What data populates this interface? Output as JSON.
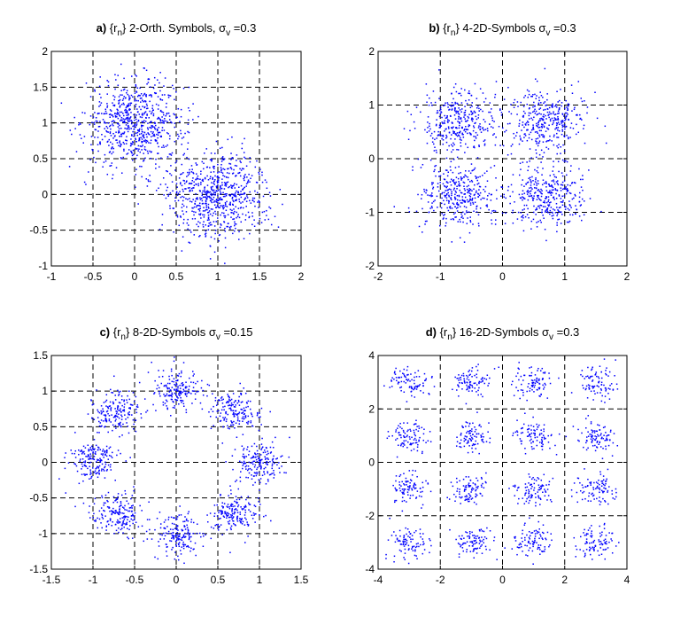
{
  "figure": {
    "panels_count": 4
  },
  "chart_data": [
    {
      "type": "scatter",
      "panel_letter": "a)",
      "title_text": "{r",
      "title_sub": "n",
      "title_rest": "}  2-Orth. Symbols,  σ",
      "title_sigma_sub": "v",
      "title_value": "=0.3",
      "xlim": [
        -1,
        2
      ],
      "ylim": [
        -1,
        2
      ],
      "xticks": [
        -1,
        -0.5,
        0,
        0.5,
        1,
        1.5,
        2
      ],
      "yticks": [
        -1,
        -0.5,
        0,
        0.5,
        1,
        1.5,
        2
      ],
      "xtick_labels": [
        "-1",
        "-0.5",
        "0",
        "0.5",
        "1",
        "1.5",
        "2"
      ],
      "ytick_labels": [
        "-1",
        "-0.5",
        "0",
        "0.5",
        "1",
        "1.5",
        "2"
      ],
      "grid": true,
      "color": "#0000ff",
      "clusters": [
        {
          "center": [
            0,
            1
          ],
          "sigma": 0.3,
          "count": 700
        },
        {
          "center": [
            1,
            0
          ],
          "sigma": 0.3,
          "count": 700
        }
      ]
    },
    {
      "type": "scatter",
      "panel_letter": "b)",
      "title_text": "{r",
      "title_sub": "n",
      "title_rest": "}  4-2D-Symbols σ",
      "title_sigma_sub": "v",
      "title_value": "=0.3",
      "xlim": [
        -2,
        2
      ],
      "ylim": [
        -2,
        2
      ],
      "xticks": [
        -2,
        -1,
        0,
        1,
        2
      ],
      "yticks": [
        -2,
        -1,
        0,
        1,
        2
      ],
      "xtick_labels": [
        "-2",
        "-1",
        "0",
        "1",
        "2"
      ],
      "ytick_labels": [
        "-2",
        "-1",
        "0",
        "1",
        "2"
      ],
      "grid": true,
      "color": "#0000ff",
      "clusters": [
        {
          "center": [
            -0.707,
            0.707
          ],
          "sigma": 0.3,
          "count": 350
        },
        {
          "center": [
            0.707,
            0.707
          ],
          "sigma": 0.3,
          "count": 350
        },
        {
          "center": [
            -0.707,
            -0.707
          ],
          "sigma": 0.3,
          "count": 350
        },
        {
          "center": [
            0.707,
            -0.707
          ],
          "sigma": 0.3,
          "count": 350
        }
      ]
    },
    {
      "type": "scatter",
      "panel_letter": "c)",
      "title_text": "{r",
      "title_sub": "n",
      "title_rest": "} 8-2D-Symbols σ",
      "title_sigma_sub": "v",
      "title_value": "=0.15",
      "xlim": [
        -1.5,
        1.5
      ],
      "ylim": [
        -1.5,
        1.5
      ],
      "xticks": [
        -1.5,
        -1,
        -0.5,
        0,
        0.5,
        1,
        1.5
      ],
      "yticks": [
        -1.5,
        -1,
        -0.5,
        0,
        0.5,
        1,
        1.5
      ],
      "xtick_labels": [
        "-1.5",
        "-1",
        "-0.5",
        "0",
        "0.5",
        "1",
        "1.5"
      ],
      "ytick_labels": [
        "-1.5",
        "-1",
        "-0.5",
        "0",
        "0.5",
        "1",
        "1.5"
      ],
      "grid": true,
      "color": "#0000ff",
      "clusters": [
        {
          "center": [
            1,
            0
          ],
          "sigma": 0.15,
          "count": 175
        },
        {
          "center": [
            0.707,
            0.707
          ],
          "sigma": 0.15,
          "count": 175
        },
        {
          "center": [
            0,
            1
          ],
          "sigma": 0.15,
          "count": 175
        },
        {
          "center": [
            -0.707,
            0.707
          ],
          "sigma": 0.15,
          "count": 175
        },
        {
          "center": [
            -1,
            0
          ],
          "sigma": 0.15,
          "count": 175
        },
        {
          "center": [
            -0.707,
            -0.707
          ],
          "sigma": 0.15,
          "count": 175
        },
        {
          "center": [
            0,
            -1
          ],
          "sigma": 0.15,
          "count": 175
        },
        {
          "center": [
            0.707,
            -0.707
          ],
          "sigma": 0.15,
          "count": 175
        }
      ]
    },
    {
      "type": "scatter",
      "panel_letter": "d)",
      "title_text": "{r",
      "title_sub": "n",
      "title_rest": "}  16-2D-Symbols σ",
      "title_sigma_sub": "v",
      "title_value": "=0.3",
      "xlim": [
        -4,
        4
      ],
      "ylim": [
        -4,
        4
      ],
      "xticks": [
        -4,
        -2,
        0,
        2,
        4
      ],
      "yticks": [
        -4,
        -2,
        0,
        2,
        4
      ],
      "xtick_labels": [
        "-4",
        "-2",
        "0",
        "2",
        "4"
      ],
      "ytick_labels": [
        "-4",
        "-2",
        "0",
        "2",
        "4"
      ],
      "grid": true,
      "color": "#0000ff",
      "clusters": [
        {
          "center": [
            -3,
            3
          ],
          "sigma": 0.3,
          "count": 90
        },
        {
          "center": [
            -1,
            3
          ],
          "sigma": 0.3,
          "count": 90
        },
        {
          "center": [
            1,
            3
          ],
          "sigma": 0.3,
          "count": 90
        },
        {
          "center": [
            3,
            3
          ],
          "sigma": 0.3,
          "count": 90
        },
        {
          "center": [
            -3,
            1
          ],
          "sigma": 0.3,
          "count": 90
        },
        {
          "center": [
            -1,
            1
          ],
          "sigma": 0.3,
          "count": 90
        },
        {
          "center": [
            1,
            1
          ],
          "sigma": 0.3,
          "count": 90
        },
        {
          "center": [
            3,
            1
          ],
          "sigma": 0.3,
          "count": 90
        },
        {
          "center": [
            -3,
            -1
          ],
          "sigma": 0.3,
          "count": 90
        },
        {
          "center": [
            -1,
            -1
          ],
          "sigma": 0.3,
          "count": 90
        },
        {
          "center": [
            1,
            -1
          ],
          "sigma": 0.3,
          "count": 90
        },
        {
          "center": [
            3,
            -1
          ],
          "sigma": 0.3,
          "count": 90
        },
        {
          "center": [
            -3,
            -3
          ],
          "sigma": 0.3,
          "count": 90
        },
        {
          "center": [
            -1,
            -3
          ],
          "sigma": 0.3,
          "count": 90
        },
        {
          "center": [
            1,
            -3
          ],
          "sigma": 0.3,
          "count": 90
        },
        {
          "center": [
            3,
            -3
          ],
          "sigma": 0.3,
          "count": 90
        }
      ]
    }
  ]
}
